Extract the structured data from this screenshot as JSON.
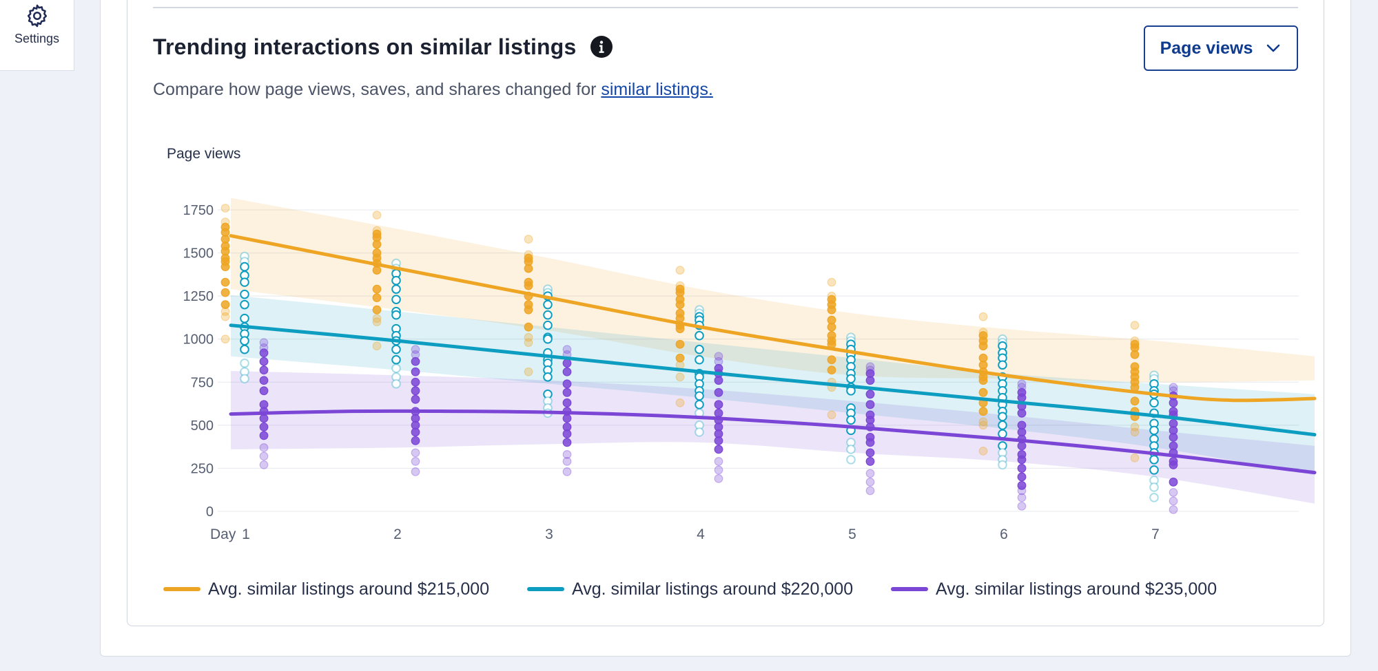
{
  "sidebar": {
    "settings_label": "Settings",
    "settings_icon": "gear-icon"
  },
  "card": {
    "title": "Trending interactions on similar listings",
    "info_icon": "info-icon",
    "description_prefix": "Compare how page views, saves, and shares changed for ",
    "description_link": "similar listings."
  },
  "dropdown": {
    "selected": "Page views",
    "icon": "chevron-down-icon"
  },
  "colors": {
    "orange": "#eea523",
    "teal": "#0c9dc0",
    "purple": "#7b45d6",
    "link": "#1447a8",
    "accent": "#0f3b8f"
  },
  "chart_data": {
    "type": "scatter",
    "ylabel": "Page views",
    "xlabel": "Day",
    "x": [
      1,
      2,
      3,
      4,
      5,
      6,
      7
    ],
    "ylim": [
      0,
      1750
    ],
    "yticks": [
      0,
      250,
      500,
      750,
      1000,
      1250,
      1500,
      1750
    ],
    "grid": true,
    "legend_position": "bottom",
    "series": [
      {
        "name": "Avg. similar listings around $215,000",
        "color": "#eea523",
        "marker": "filled",
        "trend": [
          [
            0.9,
            1600
          ],
          [
            2,
            1410
          ],
          [
            3,
            1240
          ],
          [
            4,
            1070
          ],
          [
            5,
            925
          ],
          [
            6,
            790
          ],
          [
            7,
            680
          ],
          [
            7.5,
            645
          ],
          [
            8.05,
            655
          ]
        ],
        "band_upper": [
          [
            0.9,
            1820
          ],
          [
            2,
            1640
          ],
          [
            3,
            1470
          ],
          [
            4,
            1290
          ],
          [
            5,
            1150
          ],
          [
            6,
            1060
          ],
          [
            7,
            990
          ],
          [
            8.05,
            900
          ]
        ],
        "band_lower": [
          [
            0.9,
            1290
          ],
          [
            2,
            1170
          ],
          [
            3,
            1050
          ],
          [
            4,
            900
          ],
          [
            5,
            790
          ],
          [
            6,
            770
          ],
          [
            7,
            750
          ],
          [
            8.05,
            760
          ]
        ],
        "points": [
          [
            1760,
            1680,
            1650,
            1620,
            1580,
            1540,
            1510,
            1470,
            1450,
            1420,
            1330,
            1270,
            1200,
            1160,
            1130,
            1000
          ],
          [
            1720,
            1630,
            1610,
            1590,
            1550,
            1500,
            1470,
            1440,
            1400,
            1290,
            1240,
            1170,
            1120,
            1100,
            960
          ],
          [
            1580,
            1490,
            1470,
            1450,
            1410,
            1330,
            1310,
            1250,
            1200,
            1170,
            1070,
            1010,
            980,
            810
          ],
          [
            1400,
            1310,
            1290,
            1270,
            1230,
            1200,
            1150,
            1120,
            1080,
            1060,
            970,
            890,
            850,
            780,
            630
          ],
          [
            1330,
            1250,
            1230,
            1200,
            1170,
            1110,
            1070,
            1020,
            990,
            970,
            880,
            820,
            750,
            720,
            560
          ],
          [
            1130,
            1040,
            1020,
            990,
            960,
            890,
            850,
            810,
            780,
            760,
            690,
            630,
            580,
            520,
            500,
            350
          ],
          [
            1080,
            990,
            970,
            950,
            910,
            840,
            810,
            780,
            750,
            720,
            640,
            580,
            550,
            490,
            460,
            310
          ]
        ]
      },
      {
        "name": "Avg. similar listings around $220,000",
        "color": "#0c9dc0",
        "marker": "hollow",
        "trend": [
          [
            0.9,
            1080
          ],
          [
            2,
            990
          ],
          [
            3,
            900
          ],
          [
            4,
            810
          ],
          [
            5,
            725
          ],
          [
            6,
            640
          ],
          [
            7,
            555
          ],
          [
            8.05,
            445
          ]
        ],
        "band_upper": [
          [
            0.9,
            1255
          ],
          [
            2,
            1160
          ],
          [
            3,
            1070
          ],
          [
            4,
            980
          ],
          [
            5,
            890
          ],
          [
            6,
            800
          ],
          [
            7,
            740
          ],
          [
            8.05,
            680
          ]
        ],
        "band_lower": [
          [
            0.9,
            900
          ],
          [
            2,
            820
          ],
          [
            3,
            740
          ],
          [
            4,
            660
          ],
          [
            5,
            570
          ],
          [
            6,
            480
          ],
          [
            7,
            370
          ],
          [
            8.05,
            210
          ]
        ],
        "points": [
          [
            1480,
            1450,
            1420,
            1370,
            1330,
            1260,
            1200,
            1120,
            1070,
            1030,
            990,
            940,
            860,
            810,
            770
          ],
          [
            1440,
            1410,
            1380,
            1340,
            1290,
            1230,
            1160,
            1140,
            1060,
            1020,
            990,
            940,
            880,
            830,
            780,
            740
          ],
          [
            1290,
            1270,
            1250,
            1200,
            1140,
            1080,
            1010,
            1000,
            920,
            880,
            860,
            820,
            780,
            680,
            640,
            600,
            570
          ],
          [
            1170,
            1150,
            1130,
            1110,
            1080,
            1020,
            940,
            880,
            800,
            780,
            740,
            700,
            670,
            620,
            570,
            500,
            460
          ],
          [
            1010,
            990,
            970,
            940,
            910,
            880,
            840,
            800,
            770,
            720,
            700,
            600,
            570,
            530,
            470,
            400,
            360,
            300
          ],
          [
            1000,
            980,
            960,
            920,
            890,
            850,
            780,
            740,
            700,
            660,
            620,
            580,
            550,
            500,
            450,
            380,
            340,
            300,
            270
          ],
          [
            790,
            770,
            740,
            700,
            680,
            630,
            570,
            510,
            470,
            420,
            380,
            340,
            300,
            240,
            180,
            140,
            80
          ]
        ]
      },
      {
        "name": "Avg. similar listings around $235,000",
        "color": "#7b45d6",
        "marker": "filled",
        "trend": [
          [
            0.9,
            565
          ],
          [
            1.5,
            578
          ],
          [
            2,
            582
          ],
          [
            3,
            575
          ],
          [
            4,
            545
          ],
          [
            5,
            490
          ],
          [
            6,
            420
          ],
          [
            7,
            335
          ],
          [
            8.05,
            225
          ]
        ],
        "band_upper": [
          [
            0.9,
            815
          ],
          [
            2,
            790
          ],
          [
            3,
            760
          ],
          [
            4,
            710
          ],
          [
            5,
            640
          ],
          [
            6,
            560
          ],
          [
            7,
            470
          ],
          [
            8.05,
            380
          ]
        ],
        "band_lower": [
          [
            0.9,
            360
          ],
          [
            2,
            370
          ],
          [
            3,
            390
          ],
          [
            4,
            400
          ],
          [
            5,
            340
          ],
          [
            6,
            290
          ],
          [
            7,
            200
          ],
          [
            8.05,
            45
          ]
        ],
        "points": [
          [
            980,
            950,
            920,
            870,
            820,
            760,
            700,
            620,
            580,
            540,
            490,
            440,
            370,
            320,
            270
          ],
          [
            940,
            910,
            870,
            810,
            750,
            700,
            650,
            580,
            540,
            500,
            460,
            410,
            340,
            290,
            230
          ],
          [
            940,
            910,
            860,
            810,
            740,
            690,
            630,
            580,
            540,
            490,
            450,
            400,
            330,
            290,
            230
          ],
          [
            900,
            870,
            830,
            800,
            760,
            690,
            620,
            570,
            530,
            490,
            450,
            410,
            360,
            290,
            240,
            190
          ],
          [
            840,
            820,
            800,
            760,
            680,
            620,
            560,
            530,
            490,
            430,
            400,
            340,
            290,
            220,
            170,
            120
          ],
          [
            740,
            720,
            690,
            660,
            610,
            570,
            500,
            460,
            420,
            380,
            330,
            300,
            250,
            200,
            150,
            120,
            80,
            30
          ],
          [
            720,
            700,
            670,
            630,
            580,
            560,
            510,
            470,
            430,
            380,
            340,
            290,
            270,
            170,
            110,
            60,
            10
          ]
        ]
      }
    ]
  }
}
